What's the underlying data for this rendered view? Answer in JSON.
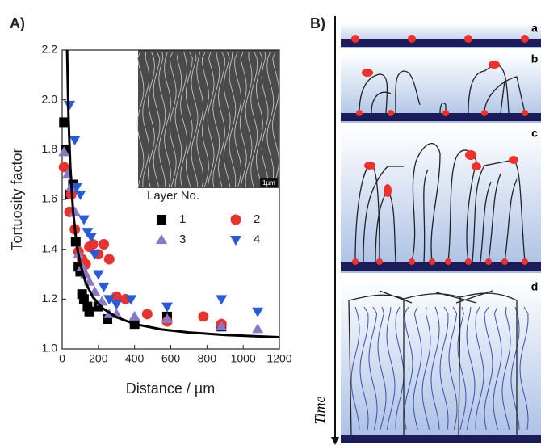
{
  "chart_data": {
    "type": "scatter",
    "title": "A)",
    "xlabel": "Distance / µm",
    "ylabel": "Tortuosity factor",
    "xlim": [
      0,
      1200
    ],
    "ylim": [
      1.0,
      2.2
    ],
    "xticks": [
      0,
      200,
      400,
      600,
      800,
      1000,
      1200
    ],
    "yticks": [
      {
        "value": 1,
        "label": "1.0"
      },
      1.2,
      1.4,
      1.6,
      1.8,
      {
        "value": 2,
        "label": "2.0"
      },
      2.2
    ],
    "grid": false,
    "legend": {
      "title": "Layer No.",
      "position": "center-right"
    },
    "series": [
      {
        "name": "1",
        "color": "#000000",
        "marker": "square",
        "x": [
          10,
          20,
          40,
          60,
          75,
          90,
          100,
          110,
          120,
          140,
          150,
          200,
          250,
          400,
          580,
          880
        ],
        "values": [
          1.91,
          1.8,
          1.62,
          1.66,
          1.43,
          1.33,
          1.31,
          1.22,
          1.2,
          1.17,
          1.15,
          1.17,
          1.12,
          1.1,
          1.13,
          1.09
        ]
      },
      {
        "name": "2",
        "color": "#e8322d",
        "marker": "circle",
        "x": [
          10,
          40,
          50,
          70,
          90,
          110,
          130,
          150,
          170,
          200,
          230,
          260,
          300,
          350,
          470,
          580,
          780,
          880
        ],
        "values": [
          1.73,
          1.55,
          1.62,
          1.48,
          1.39,
          1.36,
          1.34,
          1.41,
          1.42,
          1.38,
          1.42,
          1.36,
          1.21,
          1.2,
          1.14,
          1.11,
          1.13,
          1.1
        ]
      },
      {
        "name": "3",
        "color": "#8a79c8",
        "marker": "triangle-up",
        "x": [
          10,
          30,
          50,
          70,
          90,
          110,
          130,
          150,
          180,
          220,
          260,
          300,
          400,
          580,
          880,
          1080
        ],
        "values": [
          1.79,
          1.7,
          1.65,
          1.55,
          1.38,
          1.33,
          1.3,
          1.27,
          1.23,
          1.19,
          1.14,
          1.14,
          1.13,
          1.12,
          1.09,
          1.08
        ]
      },
      {
        "name": "4",
        "color": "#2a5bd7",
        "marker": "triangle-down",
        "x": [
          40,
          70,
          80,
          100,
          120,
          140,
          160,
          180,
          200,
          230,
          260,
          300,
          380,
          580,
          880,
          1080
        ],
        "values": [
          1.98,
          1.84,
          1.65,
          1.62,
          1.52,
          1.47,
          1.45,
          1.38,
          1.3,
          1.25,
          1.2,
          1.18,
          1.2,
          1.17,
          1.2,
          1.15
        ]
      }
    ],
    "curve": {
      "color": "#000000",
      "x": [
        27,
        35,
        45,
        60,
        80,
        100,
        130,
        170,
        220,
        300,
        400,
        550,
        700,
        900,
        1200
      ],
      "y": [
        2.2,
        1.934,
        1.731,
        1.553,
        1.42,
        1.34,
        1.266,
        1.208,
        1.165,
        1.127,
        1.1,
        1.078,
        1.066,
        1.056,
        1.047
      ]
    }
  },
  "inset": {
    "scale_label": "1µm"
  },
  "panel_b": {
    "label": "B)",
    "stages": [
      "a",
      "b",
      "c",
      "d"
    ],
    "axis_label": "Time"
  }
}
